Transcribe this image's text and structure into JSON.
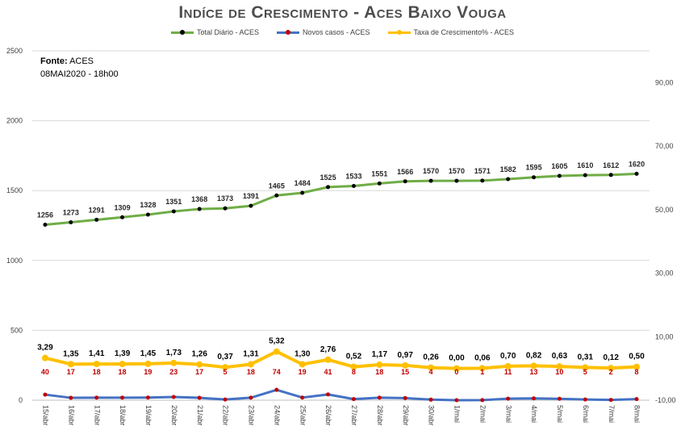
{
  "title": "Indíce de Crescimento - Aces Baixo Vouga",
  "source": {
    "label": "Fonte:",
    "value": "ACES",
    "date": "08MAI2020 - 18h00"
  },
  "colors": {
    "total": "#70ad47",
    "novos": "#4472c4",
    "taxa": "#ffc000",
    "grid": "#d9d9d9",
    "novos_label": "#c00000"
  },
  "chart_data": {
    "type": "line",
    "x": [
      "15/abr",
      "16/abr",
      "17/abr",
      "18/abr",
      "19/abr",
      "20/abr",
      "21/abr",
      "22/abr",
      "23/abr",
      "24/abr",
      "25/abr",
      "26/abr",
      "27/abr",
      "28/abr",
      "29/abr",
      "30/abr",
      "1/mai",
      "2/mai",
      "3/mai",
      "4/mai",
      "5/mai",
      "6/mai",
      "7/mai",
      "8/mai"
    ],
    "series": [
      {
        "name": "Total Diário - ACES",
        "axis": "left",
        "data_labels": true,
        "values": [
          1256,
          1273,
          1291,
          1309,
          1328,
          1351,
          1368,
          1373,
          1391,
          1465,
          1484,
          1525,
          1533,
          1551,
          1566,
          1570,
          1570,
          1571,
          1582,
          1595,
          1605,
          1610,
          1612,
          1620
        ]
      },
      {
        "name": "Novos casos - ACES",
        "axis": "left",
        "data_labels": true,
        "values": [
          40,
          17,
          18,
          18,
          19,
          23,
          17,
          5,
          18,
          74,
          19,
          41,
          8,
          18,
          15,
          4,
          0,
          1,
          11,
          13,
          10,
          5,
          2,
          8
        ]
      },
      {
        "name": "Taxa de Crescimento% - ACES",
        "axis": "right",
        "data_labels": true,
        "values": [
          3.29,
          1.35,
          1.41,
          1.39,
          1.45,
          1.73,
          1.26,
          0.37,
          1.31,
          5.32,
          1.3,
          2.76,
          0.52,
          1.17,
          0.97,
          0.26,
          0.0,
          0.06,
          0.7,
          0.82,
          0.63,
          0.31,
          0.12,
          0.5
        ],
        "value_labels": [
          "3,29",
          "1,35",
          "1,41",
          "1,39",
          "1,45",
          "1,73",
          "1,26",
          "0,37",
          "1,31",
          "5,32",
          "1,30",
          "2,76",
          "0,52",
          "1,17",
          "0,97",
          "0,26",
          "0,00",
          "0,06",
          "0,70",
          "0,82",
          "0,63",
          "0,31",
          "0,12",
          "0,50"
        ]
      }
    ],
    "y_left": {
      "ylim": [
        0,
        2500
      ],
      "ticks": [
        0,
        500,
        1000,
        1500,
        2000,
        2500
      ],
      "tick_labels": [
        "0",
        "500",
        "1000",
        "1500",
        "2000",
        "2500"
      ]
    },
    "y_right": {
      "ylim": [
        -10,
        100
      ],
      "ticks": [
        -10,
        10,
        30,
        50,
        70,
        90
      ],
      "tick_labels": [
        "-10,00",
        "10,00",
        "30,00",
        "50,00",
        "70,00",
        "90,00"
      ]
    },
    "grid": true,
    "legend_position": "top"
  }
}
